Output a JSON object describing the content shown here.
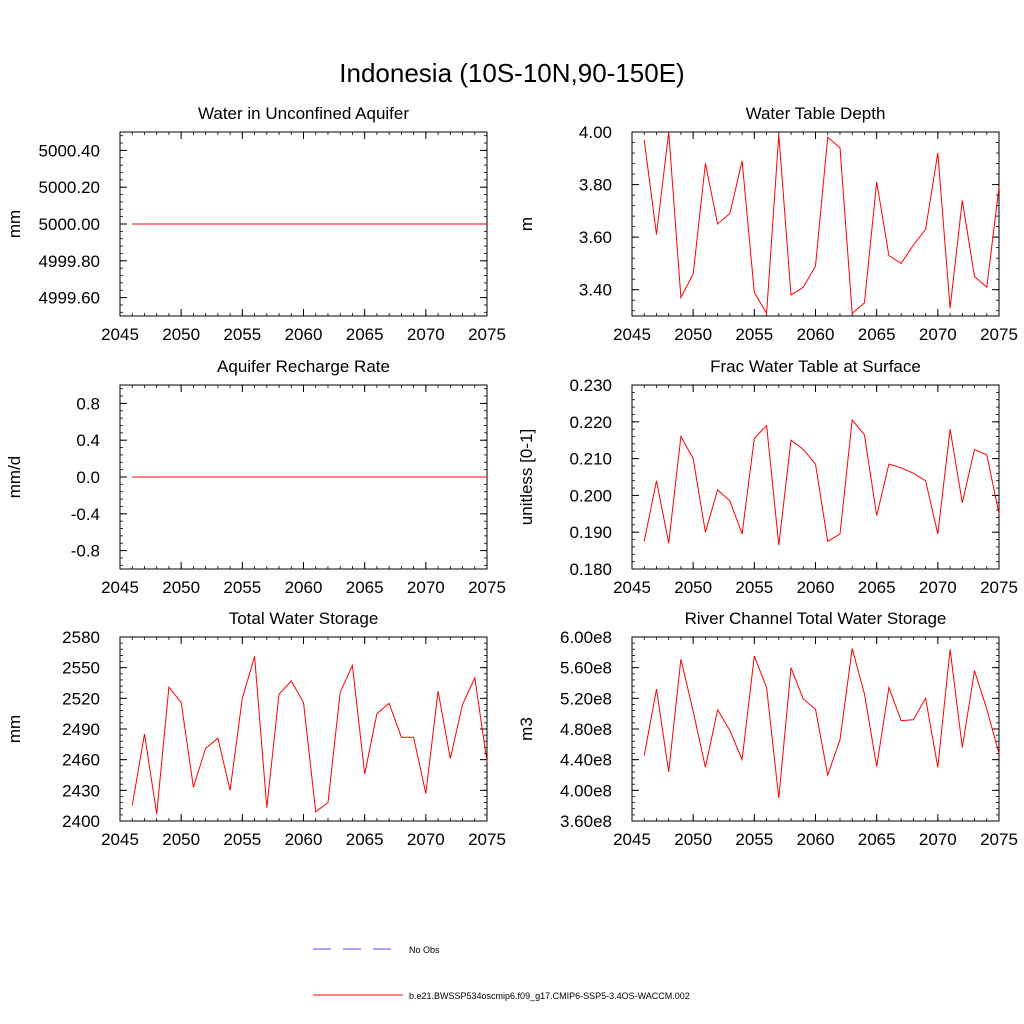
{
  "title": "Indonesia (10S-10N,90-150E)",
  "legend": {
    "entries": [
      {
        "label": "No Obs",
        "color": "#4a4aff",
        "style": "dashed"
      },
      {
        "label": "b.e21.BWSSP534oscmip6.f09_g17.CMIP6-SSP5-3.4OS-WACCM.002",
        "color": "#ff0000",
        "style": "solid"
      }
    ]
  },
  "colors": {
    "series": "#ff0000",
    "axis": "#000000"
  },
  "chart_data": [
    {
      "type": "line",
      "title": "Water in Unconfined Aquifer",
      "ylabel": "mm",
      "xlim": [
        2045,
        2075
      ],
      "ylim": [
        4999.5,
        5000.5
      ],
      "xticks": [
        2045,
        2050,
        2055,
        2060,
        2065,
        2070,
        2075
      ],
      "yticks": [
        4999.6,
        4999.8,
        5000.0,
        5000.2,
        5000.4
      ],
      "ytick_labels": [
        "4999.60",
        "4999.80",
        "5000.00",
        "5000.20",
        "5000.40"
      ],
      "x": [
        2046,
        2047,
        2048,
        2049,
        2050,
        2051,
        2052,
        2053,
        2054,
        2055,
        2056,
        2057,
        2058,
        2059,
        2060,
        2061,
        2062,
        2063,
        2064,
        2065,
        2066,
        2067,
        2068,
        2069,
        2070,
        2071,
        2072,
        2073,
        2074,
        2075
      ],
      "y": [
        5000,
        5000,
        5000,
        5000,
        5000,
        5000,
        5000,
        5000,
        5000,
        5000,
        5000,
        5000,
        5000,
        5000,
        5000,
        5000,
        5000,
        5000,
        5000,
        5000,
        5000,
        5000,
        5000,
        5000,
        5000,
        5000,
        5000,
        5000,
        5000,
        5000
      ]
    },
    {
      "type": "line",
      "title": "Water Table Depth",
      "ylabel": "m",
      "xlim": [
        2045,
        2075
      ],
      "ylim": [
        3.3,
        4.0
      ],
      "xticks": [
        2045,
        2050,
        2055,
        2060,
        2065,
        2070,
        2075
      ],
      "yticks": [
        3.4,
        3.6,
        3.8,
        4.0
      ],
      "ytick_labels": [
        "3.40",
        "3.60",
        "3.80",
        "4.00"
      ],
      "x": [
        2046,
        2047,
        2048,
        2049,
        2050,
        2051,
        2052,
        2053,
        2054,
        2055,
        2056,
        2057,
        2058,
        2059,
        2060,
        2061,
        2062,
        2063,
        2064,
        2065,
        2066,
        2067,
        2068,
        2069,
        2070,
        2071,
        2072,
        2073,
        2074,
        2075
      ],
      "y": [
        3.97,
        3.61,
        4.0,
        3.37,
        3.46,
        3.88,
        3.65,
        3.69,
        3.89,
        3.39,
        3.31,
        3.99,
        3.38,
        3.41,
        3.49,
        3.98,
        3.94,
        3.31,
        3.35,
        3.81,
        3.53,
        3.5,
        3.57,
        3.63,
        3.92,
        3.33,
        3.74,
        3.45,
        3.41,
        3.79
      ]
    },
    {
      "type": "line",
      "title": "Aquifer Recharge Rate",
      "ylabel": "mm/d",
      "xlim": [
        2045,
        2075
      ],
      "ylim": [
        -1.0,
        1.0
      ],
      "xticks": [
        2045,
        2050,
        2055,
        2060,
        2065,
        2070,
        2075
      ],
      "yticks": [
        -0.8,
        -0.4,
        0.0,
        0.4,
        0.8
      ],
      "ytick_labels": [
        "-0.8",
        "-0.4",
        "0.0",
        "0.4",
        "0.8"
      ],
      "x": [
        2046,
        2047,
        2048,
        2049,
        2050,
        2051,
        2052,
        2053,
        2054,
        2055,
        2056,
        2057,
        2058,
        2059,
        2060,
        2061,
        2062,
        2063,
        2064,
        2065,
        2066,
        2067,
        2068,
        2069,
        2070,
        2071,
        2072,
        2073,
        2074,
        2075
      ],
      "y": [
        0,
        0,
        0,
        0,
        0,
        0,
        0,
        0,
        0,
        0,
        0,
        0,
        0,
        0,
        0,
        0,
        0,
        0,
        0,
        0,
        0,
        0,
        0,
        0,
        0,
        0,
        0,
        0,
        0,
        0
      ]
    },
    {
      "type": "line",
      "title": "Frac Water Table at Surface",
      "ylabel": "unitless [0-1]",
      "xlim": [
        2045,
        2075
      ],
      "ylim": [
        0.18,
        0.23
      ],
      "xticks": [
        2045,
        2050,
        2055,
        2060,
        2065,
        2070,
        2075
      ],
      "yticks": [
        0.18,
        0.19,
        0.2,
        0.21,
        0.22,
        0.23
      ],
      "ytick_labels": [
        "0.180",
        "0.190",
        "0.200",
        "0.210",
        "0.220",
        "0.230"
      ],
      "x": [
        2046,
        2047,
        2048,
        2049,
        2050,
        2051,
        2052,
        2053,
        2054,
        2055,
        2056,
        2057,
        2058,
        2059,
        2060,
        2061,
        2062,
        2063,
        2064,
        2065,
        2066,
        2067,
        2068,
        2069,
        2070,
        2071,
        2072,
        2073,
        2074,
        2075
      ],
      "y": [
        0.1875,
        0.204,
        0.187,
        0.216,
        0.21,
        0.19,
        0.2015,
        0.1985,
        0.1895,
        0.2155,
        0.219,
        0.1865,
        0.215,
        0.2125,
        0.2085,
        0.1875,
        0.1895,
        0.2205,
        0.2165,
        0.1945,
        0.2085,
        0.2075,
        0.206,
        0.204,
        0.1895,
        0.218,
        0.198,
        0.2125,
        0.211,
        0.195
      ]
    },
    {
      "type": "line",
      "title": "Total Water Storage",
      "ylabel": "mm",
      "xlim": [
        2045,
        2075
      ],
      "ylim": [
        2400,
        2580
      ],
      "xticks": [
        2045,
        2050,
        2055,
        2060,
        2065,
        2070,
        2075
      ],
      "yticks": [
        2400,
        2430,
        2460,
        2490,
        2520,
        2550,
        2580
      ],
      "ytick_labels": [
        "2400",
        "2430",
        "2460",
        "2490",
        "2520",
        "2550",
        "2580"
      ],
      "x": [
        2046,
        2047,
        2048,
        2049,
        2050,
        2051,
        2052,
        2053,
        2054,
        2055,
        2056,
        2057,
        2058,
        2059,
        2060,
        2061,
        2062,
        2063,
        2064,
        2065,
        2066,
        2067,
        2068,
        2069,
        2070,
        2071,
        2072,
        2073,
        2074,
        2075
      ],
      "y": [
        2415,
        2485,
        2407,
        2531,
        2516,
        2433,
        2471,
        2481,
        2430,
        2520,
        2561,
        2413,
        2524,
        2537,
        2516,
        2409,
        2418,
        2526,
        2552,
        2446,
        2505,
        2515,
        2482,
        2482,
        2427,
        2527,
        2461,
        2514,
        2540,
        2458
      ]
    },
    {
      "type": "line",
      "title": "River Channel Total Water Storage",
      "ylabel": "m3",
      "xlim": [
        2045,
        2075
      ],
      "ylim": [
        360000000.0,
        600000000.0
      ],
      "xticks": [
        2045,
        2050,
        2055,
        2060,
        2065,
        2070,
        2075
      ],
      "yticks": [
        360000000.0,
        400000000.0,
        440000000.0,
        480000000.0,
        520000000.0,
        560000000.0,
        600000000.0
      ],
      "ytick_labels": [
        "3.60e8",
        "4.00e8",
        "4.40e8",
        "4.80e8",
        "5.20e8",
        "5.60e8",
        "6.00e8"
      ],
      "x": [
        2046,
        2047,
        2048,
        2049,
        2050,
        2051,
        2052,
        2053,
        2054,
        2055,
        2056,
        2057,
        2058,
        2059,
        2060,
        2061,
        2062,
        2063,
        2064,
        2065,
        2066,
        2067,
        2068,
        2069,
        2070,
        2071,
        2072,
        2073,
        2074,
        2075
      ],
      "y": [
        445000000.0,
        532000000.0,
        424000000.0,
        571000000.0,
        503000000.0,
        430000000.0,
        505000000.0,
        478000000.0,
        440000000.0,
        575000000.0,
        534000000.0,
        390000000.0,
        560000000.0,
        519000000.0,
        506000000.0,
        420000000.0,
        466000000.0,
        585000000.0,
        526000000.0,
        431000000.0,
        534000000.0,
        491000000.0,
        492000000.0,
        520000000.0,
        430000000.0,
        584000000.0,
        456000000.0,
        556000000.0,
        506000000.0,
        448000000.0
      ]
    }
  ]
}
